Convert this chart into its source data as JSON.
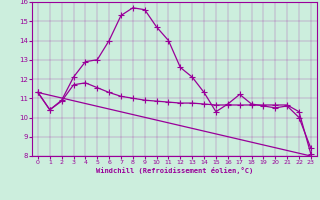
{
  "xlabel": "Windchill (Refroidissement éolien,°C)",
  "background_color": "#cceedd",
  "line_color": "#990099",
  "ylim": [
    8,
    16
  ],
  "xlim": [
    -0.5,
    23.5
  ],
  "yticks": [
    8,
    9,
    10,
    11,
    12,
    13,
    14,
    15,
    16
  ],
  "xticks": [
    0,
    1,
    2,
    3,
    4,
    5,
    6,
    7,
    8,
    9,
    10,
    11,
    12,
    13,
    14,
    15,
    16,
    17,
    18,
    19,
    20,
    21,
    22,
    23
  ],
  "series1_x": [
    0,
    1,
    2,
    3,
    4,
    5,
    6,
    7,
    8,
    9,
    10,
    11,
    12,
    13,
    14,
    15,
    16,
    17,
    18,
    19,
    20,
    21,
    22,
    23
  ],
  "series1_y": [
    11.3,
    10.4,
    10.9,
    12.1,
    12.9,
    13.0,
    14.0,
    15.3,
    15.7,
    15.6,
    14.7,
    14.0,
    12.6,
    12.1,
    11.3,
    10.3,
    10.7,
    11.2,
    10.7,
    10.6,
    10.5,
    10.6,
    10.0,
    8.4
  ],
  "series2_x": [
    0,
    1,
    2,
    3,
    4,
    5,
    6,
    7,
    8,
    9,
    10,
    11,
    12,
    13,
    14,
    15,
    16,
    17,
    18,
    19,
    20,
    21,
    22,
    23
  ],
  "series2_y": [
    11.3,
    10.4,
    10.85,
    11.7,
    11.8,
    11.55,
    11.3,
    11.1,
    11.0,
    10.9,
    10.85,
    10.8,
    10.75,
    10.75,
    10.7,
    10.65,
    10.65,
    10.65,
    10.65,
    10.65,
    10.65,
    10.65,
    10.3,
    8.1
  ],
  "series3_x": [
    0,
    23
  ],
  "series3_y": [
    11.3,
    8.0
  ]
}
